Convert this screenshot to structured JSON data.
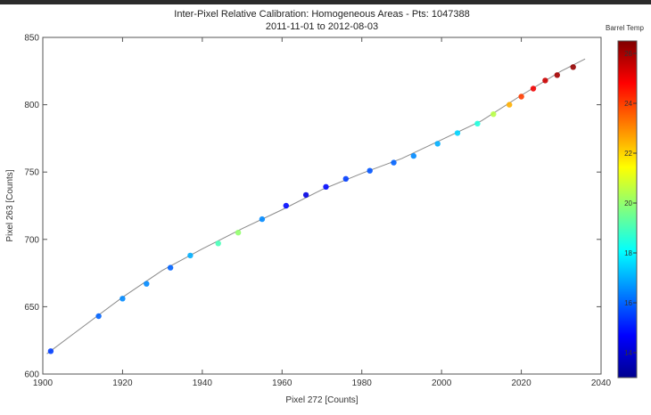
{
  "chart_data": {
    "type": "scatter",
    "title": "Inter-Pixel Relative Calibration: Homogeneous Areas - Pts: 1047388",
    "subtitle": "2011-11-01 to 2012-08-03",
    "xlabel": "Pixel 272 [Counts]",
    "ylabel": "Pixel 263 [Counts]",
    "xlim": [
      1900,
      2040
    ],
    "ylim": [
      600,
      850
    ],
    "xticks": [
      "1900",
      "1920",
      "1940",
      "1960",
      "1980",
      "2000",
      "2020",
      "2040"
    ],
    "yticks": [
      "600",
      "650",
      "700",
      "750",
      "800",
      "850"
    ],
    "grid": false,
    "colorbar": {
      "label": "Barrel Temp",
      "range": [
        13,
        26.5
      ],
      "ticks": [
        "14",
        "16",
        "18",
        "20",
        "22",
        "24",
        "26"
      ]
    },
    "fit_line": {
      "x": [
        1901,
        1910,
        1920,
        1930,
        1940,
        1950,
        1960,
        1970,
        1980,
        1990,
        2000,
        2010,
        2020,
        2030,
        2036
      ],
      "y": [
        615,
        635,
        657,
        677,
        693,
        708,
        722,
        737,
        749,
        760,
        774,
        788,
        807,
        825,
        834
      ]
    },
    "series": [
      {
        "x": [
          1902,
          1914,
          1920,
          1926,
          1932,
          1937,
          1944,
          1949,
          1955,
          1961,
          1966,
          1971,
          1976,
          1982,
          1988,
          1993,
          1999,
          2004,
          2009,
          2013,
          2017,
          2020,
          2023,
          2026,
          2029,
          2033
        ],
        "y": [
          617,
          643,
          656,
          667,
          679,
          688,
          697,
          705,
          715,
          725,
          733,
          739,
          745,
          751,
          757,
          762,
          771,
          779,
          786,
          793,
          800,
          806,
          812,
          818,
          822,
          828
        ],
        "color_value": [
          15.5,
          16,
          16.5,
          16.5,
          16,
          17,
          19,
          20,
          16.5,
          14.8,
          14.3,
          14.8,
          15.5,
          15.8,
          16,
          16.5,
          17,
          17.5,
          18.5,
          20.5,
          22.5,
          24,
          25,
          25.5,
          26,
          26.2
        ]
      }
    ]
  }
}
